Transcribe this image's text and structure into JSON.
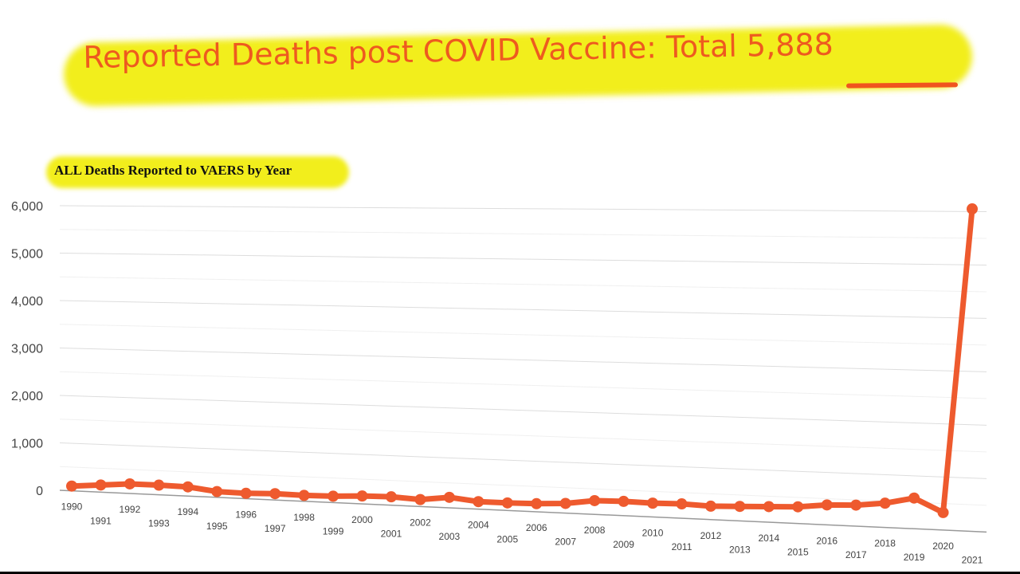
{
  "header": {
    "title_prefix": "Reported Deaths post COVID Vaccine: Total ",
    "title_total": "5,888",
    "highlight_color": "#f2ee1c",
    "title_color": "#ee5a1f"
  },
  "chart_data": {
    "type": "line",
    "title": "ALL Deaths Reported to VAERS by Year",
    "xlabel": "",
    "ylabel": "",
    "ylim": [
      0,
      6000
    ],
    "yticks": [
      "0",
      "1,000",
      "2,000",
      "3,000",
      "4,000",
      "5,000",
      "6,000"
    ],
    "grid": true,
    "line_color": "#ee5a2e",
    "x": [
      "1990",
      "1991",
      "1992",
      "1993",
      "1994",
      "1995",
      "1996",
      "1997",
      "1998",
      "1999",
      "2000",
      "2001",
      "2002",
      "2003",
      "2004",
      "2005",
      "2006",
      "2007",
      "2008",
      "2009",
      "2010",
      "2011",
      "2012",
      "2013",
      "2014",
      "2015",
      "2016",
      "2017",
      "2018",
      "2019",
      "2020",
      "2021"
    ],
    "series": [
      {
        "name": "Deaths",
        "values": [
          100,
          150,
          200,
          200,
          190,
          120,
          110,
          130,
          120,
          130,
          160,
          170,
          140,
          210,
          150,
          150,
          160,
          190,
          270,
          280,
          270,
          280,
          260,
          280,
          300,
          320,
          380,
          400,
          460,
          580,
          330,
          6050
        ]
      }
    ]
  }
}
